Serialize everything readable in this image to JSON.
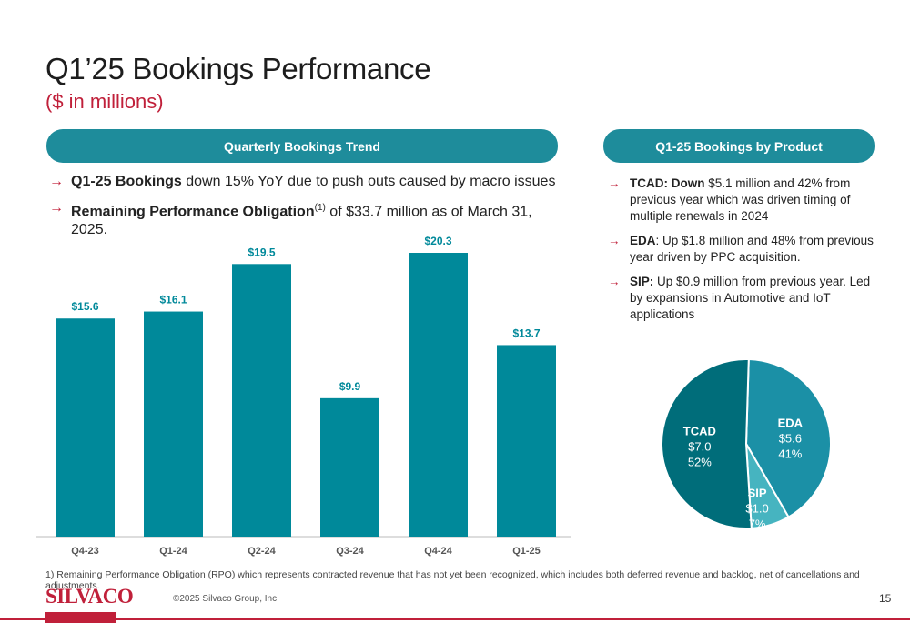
{
  "slide": {
    "title": "Q1’25 Bookings Performance",
    "subtitle": "($ in millions)",
    "page_number": "15",
    "copyright": "©2025 Silvaco Group, Inc.",
    "logo_text": "SILVACO",
    "footnote": "1)  Remaining Performance Obligation (RPO) which represents contracted revenue that has not yet been recognized, which includes both deferred revenue and backlog, net of cancellations and adjustments."
  },
  "left_panel": {
    "header": "Quarterly Bookings Trend",
    "bullets": [
      {
        "bold": "Q1-25 Bookings",
        "text": " down 15% YoY due to push outs caused by macro issues"
      },
      {
        "bold": "Remaining Performance Obligation",
        "sup": "(1)",
        "text": " of $33.7 million as of March 31, 2025."
      }
    ]
  },
  "right_panel": {
    "header": "Q1-25 Bookings by Product",
    "bullets": [
      {
        "bold": "TCAD: Down",
        "text": " $5.1 million and 42% from previous year which was driven timing of multiple renewals in 2024"
      },
      {
        "bold": "EDA",
        "text": ": Up $1.8 million and 48% from previous year driven by PPC acquisition."
      },
      {
        "bold": "SIP:",
        "text": " Up $0.9 million from previous year. Led by expansions in Automotive and IoT applications"
      }
    ]
  },
  "colors": {
    "accent_red": "#c0203a",
    "bar_teal": "#00899a",
    "pie_tcad": "#006d7a",
    "pie_eda": "#1b90a6",
    "pie_sip": "#46b4c0"
  },
  "chart_data": [
    {
      "type": "bar",
      "categories": [
        "Q4-23",
        "Q1-24",
        "Q2-24",
        "Q3-24",
        "Q4-24",
        "Q1-25"
      ],
      "values": [
        15.6,
        16.1,
        19.5,
        9.9,
        20.3,
        13.7
      ],
      "value_labels": [
        "$15.6",
        "$16.1",
        "$19.5",
        "$9.9",
        "$20.3",
        "$13.7"
      ],
      "ylim": [
        0,
        20.3
      ],
      "grid": false
    },
    {
      "type": "pie",
      "slices": [
        {
          "name": "TCAD",
          "value": 7.0,
          "value_label": "$7.0",
          "percent": 52,
          "percent_label": "52%"
        },
        {
          "name": "EDA",
          "value": 5.6,
          "value_label": "$5.6",
          "percent": 41,
          "percent_label": "41%"
        },
        {
          "name": "SIP",
          "value": 1.0,
          "value_label": "$1.0",
          "percent": 7,
          "percent_label": "7%"
        }
      ]
    }
  ]
}
